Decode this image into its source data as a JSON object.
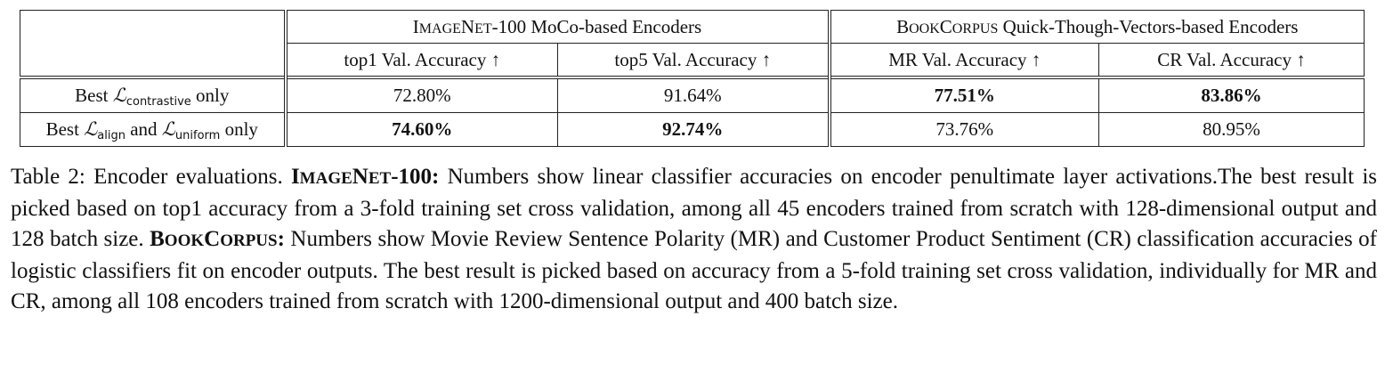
{
  "table": {
    "group_headers": {
      "imagenet": {
        "cap1": "I",
        "rest1": "MAGE",
        "cap2": "N",
        "rest2": "ET",
        "tail": "-100 MoCo-based Encoders"
      },
      "bookcorpus": {
        "cap1": "B",
        "rest1": "OOK",
        "cap2": "C",
        "rest2": "ORPUS",
        "tail": " Quick-Though-Vectors-based Encoders"
      }
    },
    "col_headers": [
      "top1 Val. Accuracy ↑",
      "top5 Val. Accuracy ↑",
      "MR Val. Accuracy ↑",
      "CR Val. Accuracy ↑"
    ],
    "rows": [
      {
        "label_pre": "Best ",
        "label_sym1": "ℒ",
        "label_sub1": "contrastive",
        "label_mid": " only",
        "label_sym2": "",
        "label_sub2": "",
        "label_post": "",
        "values": [
          "72.80%",
          "91.64%",
          "77.51%",
          "83.86%"
        ]
      },
      {
        "label_pre": "Best ",
        "label_sym1": "ℒ",
        "label_sub1": "align",
        "label_mid": " and ",
        "label_sym2": "ℒ",
        "label_sub2": "uniform",
        "label_post": " only",
        "values": [
          "74.60%",
          "92.74%",
          "73.76%",
          "80.95%"
        ]
      }
    ]
  },
  "caption": {
    "prefix": "Table 2: Encoder evaluations. ",
    "imagenet_label": {
      "c1": "I",
      "r1": "MAGE",
      "c2": "N",
      "r2": "ET",
      "tail": "-100:"
    },
    "part1": " Numbers show linear classifier accuracies on encoder penultimate layer activations.The best result is picked based on top1 accuracy from a 3-fold training set cross validation, among all 45 encoders trained from scratch with 128-dimensional output and 128 batch size. ",
    "bookcorpus_label": {
      "c1": "B",
      "r1": "OOK",
      "c2": "C",
      "r2": "ORPUS",
      "tail": ":"
    },
    "part2": " Numbers show Movie Review Sentence Polarity (MR) and Customer Product Sentiment (CR) classification accuracies of logistic classifiers fit on encoder outputs. The best result is picked based on accuracy from a 5-fold training set cross validation, individually for MR and CR, among all 108 encoders trained from scratch with 1200-dimensional output and 400 batch size."
  }
}
